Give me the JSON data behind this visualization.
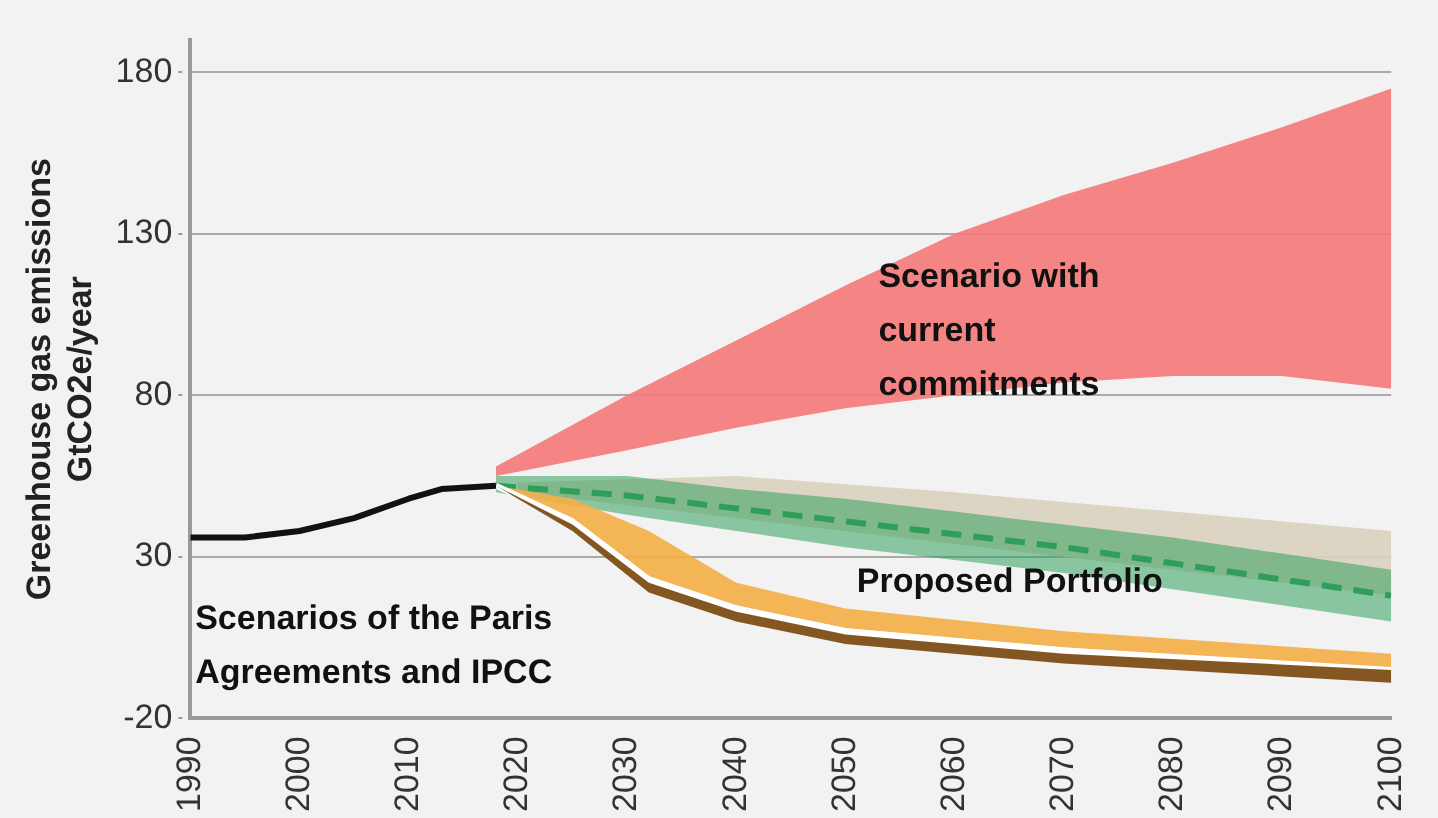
{
  "chart_data": {
    "type": "line",
    "ylabel": "Greenhouse gas emissions\nGtCO2e/year",
    "xlim": [
      1990,
      2100
    ],
    "xticks": [
      1990,
      2000,
      2010,
      2020,
      2030,
      2040,
      2050,
      2060,
      2070,
      2080,
      2090,
      2100
    ],
    "ylim": [
      -20,
      190
    ],
    "yticks": [
      -20,
      30,
      80,
      130,
      180
    ],
    "grid": "y",
    "legend": false,
    "marker": "none",
    "series": [
      {
        "color": "#f47c7c",
        "x": [
          2018,
          2030,
          2040,
          2050,
          2060,
          2070,
          2080,
          2090,
          2100
        ],
        "values": [
          null,
          null,
          null,
          null,
          null,
          null,
          null,
          null,
          null
        ],
        "lower": [
          55,
          63,
          70,
          76,
          80,
          84,
          86,
          86,
          82
        ],
        "upper": [
          58,
          80,
          97,
          114,
          130,
          142,
          152,
          163,
          175
        ]
      },
      {
        "color": "#d9d2bf",
        "x": [
          2020,
          2040,
          2060,
          2080,
          2100
        ],
        "values": [
          null,
          null,
          null,
          null,
          null
        ],
        "lower": [
          50,
          42,
          34,
          26,
          18
        ],
        "upper": [
          53,
          55,
          50,
          44,
          38
        ]
      },
      {
        "color": "#2e9e5a",
        "line_style": "dashed",
        "x": [
          2018,
          2030,
          2040,
          2050,
          2060,
          2070,
          2080,
          2090,
          2100
        ],
        "values": [
          52,
          49,
          45,
          41,
          37,
          33,
          28,
          23,
          18
        ],
        "lower": [
          50,
          43,
          38,
          33,
          29,
          25,
          20,
          15,
          10
        ],
        "upper": [
          55,
          55,
          51,
          48,
          44,
          40,
          36,
          31,
          26
        ]
      },
      {
        "color": "#f2b04a",
        "x": [
          2018,
          2025,
          2032,
          2040,
          2050,
          2070,
          2100
        ],
        "values": [
          null,
          null,
          null,
          null,
          null,
          null,
          null
        ],
        "lower": [
          52,
          42,
          24,
          15,
          8,
          2,
          -5
        ],
        "upper": [
          52,
          48,
          38,
          22,
          14,
          7,
          0
        ]
      },
      {
        "color": "#ffffff",
        "x": [
          2018,
          2025,
          2032,
          2040,
          2050,
          2070,
          2100
        ],
        "values": [
          52,
          41,
          23,
          14,
          7,
          1,
          -5
        ]
      },
      {
        "color": "#7a4a12",
        "x": [
          2018,
          2025,
          2032,
          2040,
          2050,
          2070,
          2100
        ],
        "values": [
          null,
          null,
          null,
          null,
          null,
          null,
          null
        ],
        "lower": [
          52,
          38,
          19,
          10,
          3,
          -3,
          -9
        ],
        "upper": [
          52,
          40,
          22,
          13,
          6,
          0,
          -5
        ]
      },
      {
        "color": "#111111",
        "x": [
          1990,
          1995,
          2000,
          2005,
          2010,
          2013,
          2018
        ],
        "values": [
          36,
          36,
          38,
          42,
          48,
          51,
          52
        ]
      }
    ],
    "annotations": [
      "Scenario with\ncurrent\ncommitments",
      "Proposed Portfolio",
      "Scenarios of the Paris\nAgreements and IPCC"
    ]
  }
}
